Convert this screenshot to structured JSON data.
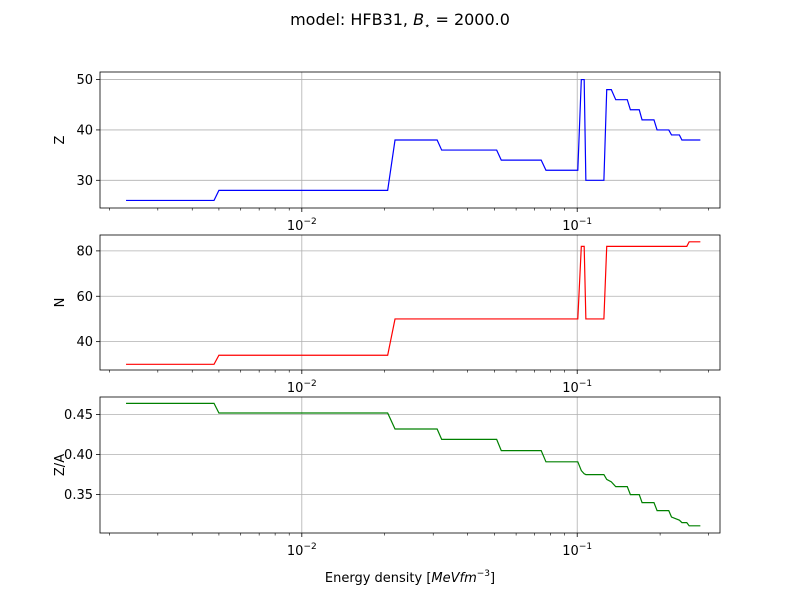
{
  "chart_data": {
    "type": "line",
    "title_prefix": "model: HFB31, ",
    "title_math_B": "B",
    "title_math_sub": "⋆",
    "title_math_rest": " = 2000.0",
    "xlabel_text": "Energy density [",
    "xlabel_math": "MeVfm",
    "xlabel_sup": "−3",
    "xlabel_close": "]",
    "x_scale": "log",
    "xlim": [
      0.00185,
      0.33
    ],
    "x_major_ticks": [
      {
        "value": 0.01,
        "base": "10",
        "exp": "−2"
      },
      {
        "value": 0.1,
        "base": "10",
        "exp": "−1"
      }
    ],
    "x": [
      0.0023,
      0.0048,
      0.005,
      0.0205,
      0.0218,
      0.031,
      0.0322,
      0.051,
      0.053,
      0.074,
      0.077,
      0.1005,
      0.1035,
      0.106,
      0.1075,
      0.125,
      0.128,
      0.133,
      0.138,
      0.152,
      0.156,
      0.168,
      0.172,
      0.19,
      0.195,
      0.215,
      0.22,
      0.235,
      0.24,
      0.25,
      0.255,
      0.28
    ],
    "grid": true,
    "panels": [
      {
        "ylabel": "Z",
        "color": "#0000ff",
        "ylim": [
          24.5,
          51.5
        ],
        "yticks": [
          30,
          40,
          50
        ],
        "tick_labels": [
          "30",
          "40",
          "50"
        ],
        "series": [
          {
            "values": [
              26,
              26,
              28,
              28,
              38,
              38,
              36,
              36,
              34,
              34,
              32,
              32,
              50,
              50,
              30,
              30,
              48,
              48,
              46,
              46,
              44,
              44,
              42,
              42,
              40,
              40,
              39,
              39,
              38,
              38,
              38,
              38
            ]
          }
        ]
      },
      {
        "ylabel": "N",
        "color": "#ff0000",
        "ylim": [
          27.5,
          87
        ],
        "yticks": [
          40,
          60,
          80
        ],
        "tick_labels": [
          "40",
          "60",
          "80"
        ],
        "series": [
          {
            "values": [
              30,
              30,
              34,
              34,
              50,
              50,
              50,
              50,
              50,
              50,
              50,
              50,
              82,
              82,
              50,
              50,
              82,
              82,
              82,
              82,
              82,
              82,
              82,
              82,
              82,
              82,
              82,
              82,
              82,
              82,
              84,
              84
            ]
          }
        ]
      },
      {
        "ylabel": "Z/A",
        "color": "#008000",
        "ylim": [
          0.302,
          0.472
        ],
        "yticks": [
          0.35,
          0.4,
          0.45
        ],
        "tick_labels": [
          "0.35",
          "0.40",
          "0.45"
        ],
        "series": [
          {
            "values": [
              0.464,
              0.464,
              0.452,
              0.452,
              0.432,
              0.432,
              0.419,
              0.419,
              0.405,
              0.405,
              0.391,
              0.391,
              0.38,
              0.376,
              0.375,
              0.375,
              0.369,
              0.366,
              0.36,
              0.36,
              0.35,
              0.35,
              0.34,
              0.34,
              0.33,
              0.33,
              0.322,
              0.318,
              0.315,
              0.315,
              0.311,
              0.311
            ]
          }
        ]
      }
    ]
  }
}
